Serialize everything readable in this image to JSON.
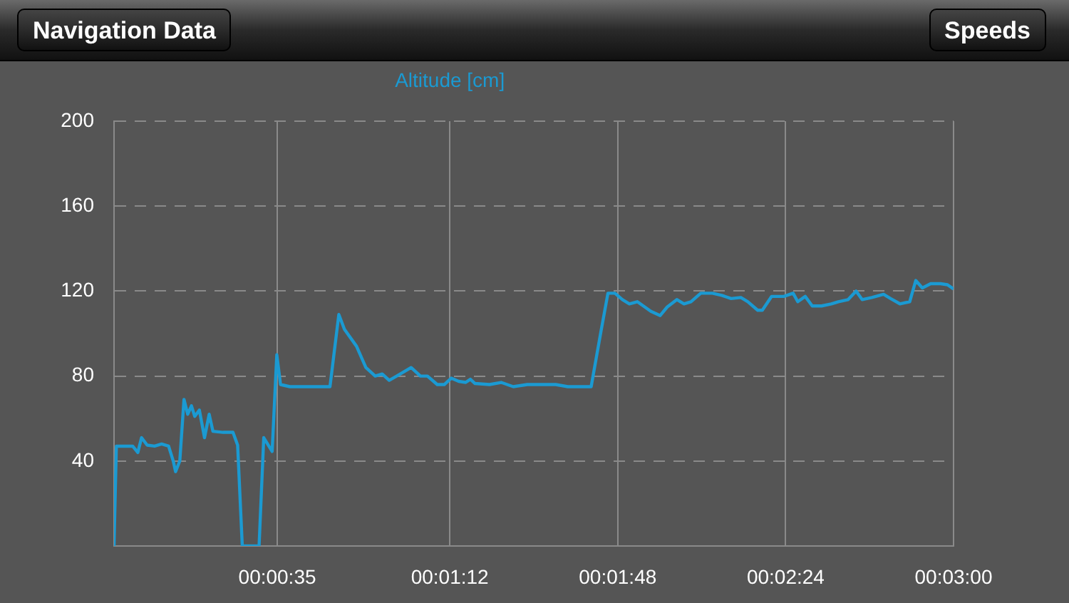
{
  "chart_data": {
    "type": "line",
    "title": "Altitude [cm]",
    "annotations": [
      "Navigation Data",
      "Speeds"
    ],
    "x": [
      0,
      0.5,
      4,
      5.1,
      5.9,
      7.1,
      8.7,
      10.2,
      11.7,
      12.7,
      13.2,
      14.1,
      15,
      15.8,
      16.6,
      17.3,
      18.3,
      19.4,
      20.4,
      21.2,
      23.4,
      25.5,
      26.5,
      27.5,
      31.1,
      32.1,
      33.9,
      34.9,
      35.7,
      37.7,
      46.3,
      48.2,
      49.4,
      52,
      54,
      56,
      57.5,
      59,
      60.6,
      63.7,
      65.7,
      67.2,
      69.3,
      70.8,
      72.3,
      73.9,
      75.4,
      76.4,
      77.4,
      80.5,
      83,
      85.6,
      88.6,
      90.7,
      94.7,
      97.3,
      102.3,
      104.4,
      105.9,
      107.4,
      109,
      110.5,
      112.2,
      115.1,
      117.1,
      118.6,
      120.7,
      122.2,
      123.7,
      125.8,
      128.3,
      130.3,
      132.3,
      134.4,
      135.9,
      138,
      139,
      141,
      143.6,
      145.6,
      146.6,
      148.2,
      149.7,
      151.7,
      153.8,
      155.3,
      157.4,
      159.1,
      160.4,
      162.5,
      165,
      166.5,
      168.5,
      170.6,
      171.9,
      173.3,
      175.1,
      177.2,
      178.7,
      180
    ],
    "series": [
      {
        "color": "#1b9ad2",
        "values": [
          0,
          47,
          47,
          44,
          51,
          47.5,
          47,
          48,
          47,
          40,
          35,
          40,
          69,
          62,
          66,
          61,
          64,
          51,
          62,
          54,
          53.5,
          53.5,
          47.5,
          0,
          0,
          51,
          44.5,
          90,
          76,
          75,
          75,
          109,
          102,
          94,
          84,
          80,
          81,
          78,
          80,
          84,
          80,
          80,
          76,
          76,
          79,
          77.5,
          77,
          78.5,
          76.5,
          76,
          77,
          75,
          76,
          76,
          76,
          75,
          75,
          101,
          119,
          119,
          116,
          114,
          115,
          110.5,
          108.5,
          112.5,
          116,
          114,
          115,
          119,
          119,
          118,
          116.5,
          117,
          115,
          111,
          111,
          117.5,
          117.5,
          119,
          115,
          117.5,
          113,
          113,
          114,
          115,
          116,
          120,
          116,
          117,
          118.5,
          116.5,
          114,
          115,
          125,
          121.5,
          123.5,
          123.5,
          123,
          121
        ]
      }
    ],
    "xlim": [
      0,
      180
    ],
    "xticks": [
      {
        "value": 35,
        "label": "00:00:35"
      },
      {
        "value": 72,
        "label": "00:01:12"
      },
      {
        "value": 108,
        "label": "00:01:48"
      },
      {
        "value": 144,
        "label": "00:02:24"
      },
      {
        "value": 180,
        "label": "00:03:00"
      }
    ],
    "ylim": [
      0,
      200
    ],
    "yticks": [
      {
        "value": 0,
        "label": null
      },
      40,
      80,
      120,
      160,
      200
    ],
    "grid": true,
    "legend": false,
    "marker": "none",
    "line_style": "solid"
  }
}
